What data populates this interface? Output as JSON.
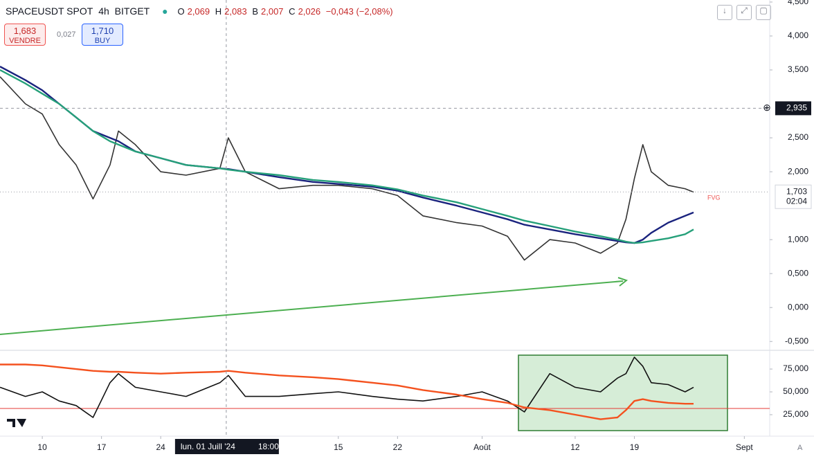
{
  "header": {
    "symbol": "SPACEUSDT SPOT",
    "interval": "4h",
    "exchange": "BITGET",
    "o_key": "O",
    "o": "2,069",
    "h_key": "H",
    "h": "2,083",
    "b_key": "B",
    "b": "2,007",
    "c_key": "C",
    "c": "2,026",
    "change": "−0,043 (−2,08%)",
    "sell_price": "1,683",
    "sell_label": "VENDRE",
    "buy_price": "1,710",
    "buy_label": "BUY",
    "spread": "0,027"
  },
  "chart_data": [
    {
      "type": "line",
      "x": [
        "2024-06-05",
        "2024-06-08",
        "2024-06-10",
        "2024-06-12",
        "2024-06-14",
        "2024-06-16",
        "2024-06-18",
        "2024-06-19",
        "2024-06-21",
        "2024-06-24",
        "2024-06-27",
        "2024-07-01",
        "2024-07-02",
        "2024-07-04",
        "2024-07-08",
        "2024-07-12",
        "2024-07-15",
        "2024-07-19",
        "2024-07-22",
        "2024-07-25",
        "2024-07-29",
        "2024-08-01",
        "2024-08-04",
        "2024-08-06",
        "2024-08-09",
        "2024-08-12",
        "2024-08-15",
        "2024-08-17",
        "2024-08-18",
        "2024-08-19",
        "2024-08-20",
        "2024-08-21",
        "2024-08-23",
        "2024-08-25",
        "2024-08-26"
      ],
      "series": [
        {
          "color": "#333333",
          "values": [
            3.4,
            3.0,
            2.85,
            2.4,
            2.1,
            1.6,
            2.1,
            2.6,
            2.4,
            2.0,
            1.95,
            2.05,
            2.5,
            2.0,
            1.75,
            1.8,
            1.8,
            1.75,
            1.65,
            1.35,
            1.25,
            1.2,
            1.05,
            0.7,
            1.0,
            0.95,
            0.8,
            0.95,
            1.3,
            1.9,
            2.4,
            2.0,
            1.8,
            1.75,
            1.7
          ]
        },
        {
          "color": "#1a237e",
          "values": [
            3.55,
            3.35,
            3.2,
            3.0,
            2.8,
            2.6,
            2.5,
            2.45,
            2.3,
            2.2,
            2.1,
            2.05,
            2.04,
            2.0,
            1.92,
            1.85,
            1.82,
            1.78,
            1.72,
            1.62,
            1.5,
            1.4,
            1.3,
            1.22,
            1.15,
            1.08,
            1.02,
            0.98,
            0.96,
            0.95,
            1.0,
            1.1,
            1.25,
            1.35,
            1.4
          ]
        },
        {
          "color": "#26a07a",
          "values": [
            3.5,
            3.3,
            3.15,
            3.0,
            2.8,
            2.6,
            2.45,
            2.4,
            2.3,
            2.2,
            2.1,
            2.05,
            2.03,
            2.0,
            1.95,
            1.88,
            1.85,
            1.8,
            1.74,
            1.65,
            1.55,
            1.45,
            1.35,
            1.28,
            1.2,
            1.12,
            1.05,
            1.0,
            0.97,
            0.95,
            0.96,
            0.98,
            1.02,
            1.08,
            1.15
          ]
        }
      ],
      "xlim": [
        "2024-06-05",
        "2024-09-04"
      ],
      "xticks": [
        {
          "value": "2024-06-10",
          "label": "10"
        },
        {
          "value": "2024-06-17",
          "label": "17"
        },
        {
          "value": "2024-06-24",
          "label": "24"
        },
        {
          "value": "2024-07-15",
          "label": "15"
        },
        {
          "value": "2024-07-22",
          "label": "22"
        },
        {
          "value": "2024-08-01",
          "label": "Août"
        },
        {
          "value": "2024-08-12",
          "label": "12"
        },
        {
          "value": "2024-08-19",
          "label": "19"
        },
        {
          "value": "2024-09-01",
          "label": "Sept"
        }
      ],
      "ylim": [
        -0.62,
        4.53
      ],
      "yticks": [
        {
          "value": 4.5,
          "label": "4,500"
        },
        {
          "value": 4.0,
          "label": "4,000"
        },
        {
          "value": 3.5,
          "label": "3,500"
        },
        {
          "value": 2.5,
          "label": "2,500"
        },
        {
          "value": 2.0,
          "label": "2,000"
        },
        {
          "value": 1.0,
          "label": "1,000"
        },
        {
          "value": 0.5,
          "label": "0,500"
        },
        {
          "value": 0,
          "label": "0,000"
        },
        {
          "value": -0.5,
          "label": "-0,500"
        }
      ],
      "crosshair": {
        "price": {
          "value": 2.935,
          "label": "2,935"
        },
        "date": "lun. 01 Juill '24",
        "time": "18:00",
        "x": "2024-07-01T18:00"
      },
      "last_price": {
        "value": 1.703,
        "label": "1,703"
      },
      "countdown": "02:04",
      "annotation": "FVG"
    },
    {
      "type": "line",
      "x": [
        "2024-06-05",
        "2024-06-08",
        "2024-06-10",
        "2024-06-12",
        "2024-06-14",
        "2024-06-16",
        "2024-06-18",
        "2024-06-19",
        "2024-06-21",
        "2024-06-24",
        "2024-06-27",
        "2024-07-01",
        "2024-07-02",
        "2024-07-04",
        "2024-07-08",
        "2024-07-12",
        "2024-07-15",
        "2024-07-19",
        "2024-07-22",
        "2024-07-25",
        "2024-07-29",
        "2024-08-01",
        "2024-08-04",
        "2024-08-06",
        "2024-08-09",
        "2024-08-12",
        "2024-08-15",
        "2024-08-17",
        "2024-08-18",
        "2024-08-19",
        "2024-08-20",
        "2024-08-21",
        "2024-08-23",
        "2024-08-25",
        "2024-08-26"
      ],
      "series": [
        {
          "color": "#111111",
          "values": [
            55,
            45,
            50,
            40,
            35,
            22,
            60,
            70,
            55,
            50,
            45,
            60,
            68,
            45,
            45,
            48,
            50,
            45,
            42,
            40,
            45,
            50,
            40,
            28,
            70,
            55,
            50,
            65,
            70,
            88,
            78,
            60,
            58,
            50,
            55
          ]
        },
        {
          "color": "#f4511e",
          "values": [
            80,
            80,
            79,
            77,
            75,
            73,
            72,
            72,
            71,
            70,
            71,
            72,
            73,
            71,
            68,
            66,
            64,
            60,
            57,
            52,
            47,
            42,
            38,
            33,
            30,
            25,
            20,
            22,
            30,
            40,
            42,
            40,
            38,
            37,
            37
          ]
        }
      ],
      "xlim": [
        "2024-06-05",
        "2024-09-04"
      ],
      "ylim": [
        1.5,
        94
      ],
      "yticks": [
        {
          "value": 75,
          "label": "75,000"
        },
        {
          "value": 50,
          "label": "50,000"
        },
        {
          "value": 25,
          "label": "25,000"
        }
      ],
      "corner_label": "A"
    }
  ]
}
